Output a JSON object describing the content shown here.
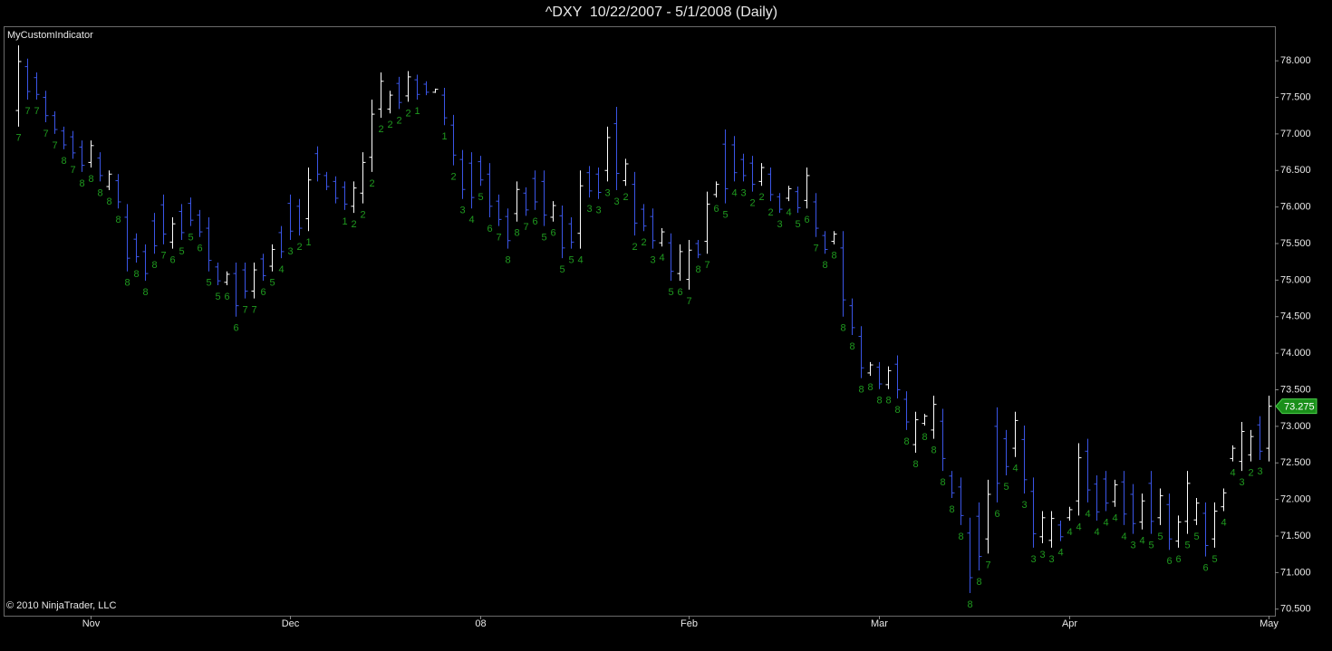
{
  "chart_data": {
    "type": "ohlc",
    "title": "^DXY  10/22/2007 - 5/1/2008 (Daily)",
    "indicator_label": "MyCustomIndicator",
    "copyright": "© 2010 NinjaTrader, LLC",
    "up_color": "#ffffff",
    "down_color": "#3a55e6",
    "label_color": "#1f9a1f",
    "last_price_color": "#1a8f1a",
    "categories": [
      null,
      null,
      null,
      null,
      null,
      null,
      null,
      null,
      "Nov",
      null,
      null,
      null,
      null,
      null,
      null,
      null,
      null,
      null,
      null,
      null,
      null,
      null,
      null,
      null,
      null,
      null,
      null,
      null,
      null,
      null,
      "Dec",
      null,
      null,
      null,
      null,
      null,
      null,
      null,
      null,
      null,
      null,
      null,
      null,
      null,
      null,
      null,
      null,
      null,
      null,
      null,
      null,
      "08",
      null,
      null,
      null,
      null,
      null,
      null,
      null,
      null,
      null,
      null,
      null,
      null,
      null,
      null,
      null,
      null,
      null,
      null,
      null,
      null,
      null,
      null,
      "Feb",
      null,
      null,
      null,
      null,
      null,
      null,
      null,
      null,
      null,
      null,
      null,
      null,
      null,
      null,
      null,
      null,
      null,
      null,
      null,
      null,
      "Mar",
      null,
      null,
      null,
      null,
      null,
      null,
      null,
      null,
      null,
      null,
      null,
      null,
      null,
      null,
      null,
      null,
      null,
      null,
      null,
      null,
      "Apr",
      null,
      null,
      null,
      null,
      null,
      null,
      null,
      null,
      null,
      null,
      null,
      null,
      null,
      null,
      null,
      null,
      null,
      null,
      null,
      null,
      null,
      "May"
    ],
    "open": [
      77.32,
      77.92,
      77.77,
      77.5,
      77.25,
      77.04,
      76.96,
      76.82,
      76.61,
      76.67,
      76.28,
      76.36,
      75.86,
      75.56,
      75.39,
      75.81,
      76.03,
      75.52,
      75.94,
      76.05,
      75.89,
      75.71,
      75.18,
      74.97,
      75.09,
      75.14,
      74.85,
      75.29,
      75.19,
      75.65,
      76.05,
      76.01,
      75.84,
      76.73,
      76.43,
      76.35,
      76.27,
      76.01,
      76.19,
      76.68,
      77.34,
      77.34,
      77.69,
      77.52,
      77.74,
      77.68,
      77.57,
      77.53,
      77.12,
      76.65,
      76.6,
      76.62,
      76.45,
      76.08,
      75.87,
      75.91,
      76.19,
      76.39,
      76.35,
      75.86,
      75.88,
      75.77,
      75.64,
      76.47,
      76.45,
      76.5,
      77.14,
      76.36,
      76.31,
      75.97,
      75.87,
      75.51,
      75.51,
      75.09,
      75.01,
      75.5,
      75.53,
      76.17,
      76.86,
      76.85,
      76.65,
      76.6,
      76.35,
      76.45,
      76.14,
      76.12,
      76.21,
      76.09,
      76.07,
      75.61,
      75.53,
      75.44,
      74.65,
      74.23,
      73.73,
      73.81,
      73.57,
      73.85,
      73.37,
      72.75,
      73.04,
      72.95,
      73.07,
      72.32,
      72.17,
      71.54,
      71.77,
      71.46,
      73.0,
      72.83,
      72.7,
      72.82,
      72.11,
      71.49,
      71.44,
      71.65,
      71.75,
      71.98,
      72.66,
      72.21,
      72.28,
      71.97,
      72.24,
      72.07,
      71.69,
      72.22,
      71.75,
      71.93,
      71.43,
      71.7,
      71.72,
      71.81,
      71.46,
      71.9,
      72.56,
      72.52,
      72.61,
      73.02,
      72.7
    ],
    "high": [
      78.21,
      78.03,
      77.84,
      77.59,
      77.31,
      77.1,
      77.04,
      76.91,
      76.91,
      76.75,
      76.5,
      76.45,
      76.04,
      75.64,
      75.49,
      75.92,
      76.17,
      75.86,
      76.04,
      76.13,
      75.96,
      75.86,
      75.24,
      75.12,
      75.24,
      75.24,
      75.24,
      75.36,
      75.49,
      75.74,
      76.17,
      76.11,
      76.54,
      76.83,
      76.48,
      76.42,
      76.35,
      76.35,
      76.75,
      77.47,
      77.84,
      77.59,
      77.78,
      77.86,
      77.81,
      77.72,
      77.62,
      77.63,
      77.26,
      76.78,
      76.75,
      76.7,
      76.6,
      76.17,
      75.98,
      76.35,
      76.27,
      76.5,
      76.5,
      76.08,
      76.02,
      75.86,
      76.5,
      76.56,
      76.54,
      77.1,
      77.37,
      76.66,
      76.48,
      76.04,
      75.98,
      75.71,
      75.64,
      75.49,
      75.55,
      75.55,
      76.21,
      76.35,
      77.06,
      76.97,
      76.73,
      76.7,
      76.6,
      76.54,
      76.19,
      76.29,
      76.28,
      76.54,
      76.19,
      75.67,
      75.67,
      75.67,
      74.75,
      74.37,
      73.88,
      73.88,
      73.82,
      73.97,
      73.48,
      73.2,
      73.17,
      73.42,
      73.24,
      72.39,
      72.3,
      71.75,
      71.96,
      72.27,
      73.26,
      72.95,
      73.2,
      73.01,
      72.3,
      71.84,
      71.84,
      71.71,
      71.9,
      72.77,
      72.83,
      72.33,
      72.39,
      72.27,
      72.39,
      72.21,
      72.08,
      72.39,
      72.15,
      72.08,
      71.78,
      72.39,
      72.02,
      71.96,
      71.96,
      72.15,
      72.74,
      73.06,
      72.95,
      73.14,
      73.42
    ],
    "low": [
      77.1,
      77.47,
      77.47,
      77.16,
      77.0,
      76.79,
      76.66,
      76.48,
      76.54,
      76.35,
      76.23,
      75.98,
      75.12,
      75.24,
      74.99,
      75.36,
      75.49,
      75.43,
      75.55,
      75.74,
      75.59,
      75.12,
      74.93,
      74.93,
      74.5,
      74.75,
      74.75,
      74.99,
      75.12,
      75.3,
      75.55,
      75.61,
      75.67,
      76.35,
      76.23,
      76.05,
      75.96,
      75.92,
      76.05,
      76.48,
      77.22,
      77.28,
      77.34,
      77.44,
      77.47,
      77.53,
      77.56,
      77.12,
      76.57,
      76.11,
      75.98,
      76.29,
      75.86,
      75.74,
      75.43,
      75.8,
      75.88,
      75.96,
      75.74,
      75.8,
      75.3,
      75.43,
      75.43,
      76.13,
      76.11,
      76.35,
      76.23,
      76.29,
      75.61,
      75.67,
      75.43,
      75.46,
      74.99,
      74.99,
      74.87,
      75.3,
      75.36,
      76.13,
      76.05,
      76.35,
      76.35,
      76.21,
      76.29,
      76.08,
      75.92,
      76.08,
      75.92,
      75.98,
      75.59,
      75.36,
      75.49,
      74.5,
      74.25,
      73.66,
      73.69,
      73.51,
      73.51,
      73.38,
      72.95,
      72.64,
      73.01,
      72.83,
      72.39,
      72.02,
      71.65,
      70.72,
      71.03,
      71.26,
      71.96,
      72.33,
      72.58,
      72.08,
      71.34,
      71.4,
      71.34,
      71.43,
      71.71,
      71.78,
      71.96,
      71.71,
      71.84,
      71.9,
      71.65,
      71.53,
      71.59,
      71.53,
      71.65,
      71.31,
      71.34,
      71.53,
      71.65,
      71.22,
      71.34,
      71.84,
      72.52,
      72.39,
      72.52,
      72.54,
      72.52
    ],
    "close": [
      77.99,
      77.58,
      77.54,
      77.25,
      77.06,
      76.85,
      76.74,
      76.57,
      76.84,
      76.43,
      76.45,
      76.07,
      75.3,
      75.32,
      75.09,
      75.47,
      75.63,
      75.77,
      75.65,
      75.82,
      75.66,
      75.27,
      74.99,
      75.08,
      74.65,
      74.85,
      75.14,
      75.06,
      75.42,
      75.39,
      75.67,
      75.71,
      76.37,
      76.45,
      76.28,
      76.12,
      76.04,
      76.26,
      76.61,
      77.27,
      77.72,
      77.53,
      77.43,
      77.78,
      77.54,
      77.57,
      77.61,
      77.22,
      76.71,
      76.24,
      76.13,
      76.37,
      76.01,
      75.83,
      75.54,
      76.24,
      75.96,
      76.07,
      75.89,
      76.02,
      75.44,
      75.52,
      76.29,
      76.22,
      76.2,
      76.95,
      76.46,
      76.59,
      75.78,
      75.74,
      75.54,
      75.66,
      75.12,
      75.39,
      75.41,
      75.35,
      76.04,
      76.31,
      76.25,
      76.47,
      76.43,
      76.31,
      76.54,
      76.17,
      75.97,
      76.25,
      75.99,
      76.43,
      75.71,
      75.42,
      75.63,
      74.73,
      74.35,
      73.8,
      73.84,
      73.58,
      73.76,
      73.5,
      73.06,
      73.09,
      73.14,
      73.3,
      72.56,
      72.09,
      71.78,
      70.93,
      71.22,
      72.07,
      72.22,
      72.45,
      73.08,
      72.27,
      71.53,
      71.75,
      71.74,
      71.49,
      71.86,
      72.57,
      72.13,
      71.83,
      71.95,
      72.2,
      71.8,
      71.67,
      71.98,
      71.7,
      72.05,
      71.46,
      71.69,
      72.22,
      71.95,
      71.37,
      71.84,
      72.09,
      72.7,
      72.93,
      72.86,
      72.66,
      73.275
    ],
    "bar_labels": [
      7,
      7,
      7,
      7,
      7,
      8,
      7,
      8,
      8,
      8,
      8,
      8,
      8,
      8,
      8,
      8,
      7,
      6,
      5,
      5,
      6,
      5,
      5,
      6,
      6,
      7,
      7,
      6,
      5,
      4,
      3,
      2,
      1,
      null,
      null,
      null,
      1,
      2,
      2,
      2,
      2,
      2,
      2,
      2,
      1,
      null,
      null,
      1,
      2,
      3,
      4,
      5,
      6,
      7,
      8,
      8,
      7,
      6,
      5,
      6,
      5,
      5,
      4,
      3,
      3,
      3,
      3,
      2,
      2,
      2,
      3,
      4,
      5,
      6,
      7,
      8,
      7,
      6,
      5,
      4,
      3,
      2,
      2,
      2,
      3,
      4,
      5,
      6,
      7,
      8,
      8,
      8,
      8,
      8,
      8,
      8,
      8,
      8,
      8,
      8,
      8,
      8,
      8,
      8,
      8,
      8,
      8,
      7,
      6,
      5,
      4,
      3,
      3,
      3,
      3,
      4,
      4,
      4,
      4,
      4,
      4,
      4,
      4,
      3,
      4,
      5,
      5,
      6,
      6,
      5,
      5,
      6,
      5,
      4,
      4,
      3,
      2,
      3,
      null
    ],
    "ylim": [
      70.41,
      78.46
    ],
    "yticks": [
      {
        "value": 70.5,
        "label": "70.500"
      },
      {
        "value": 71,
        "label": "71.000"
      },
      {
        "value": 71.5,
        "label": "71.500"
      },
      {
        "value": 72,
        "label": "72.000"
      },
      {
        "value": 72.5,
        "label": "72.500"
      },
      {
        "value": 73,
        "label": "73.000"
      },
      {
        "value": 73.5,
        "label": "73.500"
      },
      {
        "value": 74,
        "label": "74.000"
      },
      {
        "value": 74.5,
        "label": "74.500"
      },
      {
        "value": 75,
        "label": "75.000"
      },
      {
        "value": 75.5,
        "label": "75.500"
      },
      {
        "value": 76,
        "label": "76.000"
      },
      {
        "value": 76.5,
        "label": "76.500"
      },
      {
        "value": 77,
        "label": "77.000"
      },
      {
        "value": 77.5,
        "label": "77.500"
      },
      {
        "value": 78,
        "label": "78.000"
      }
    ],
    "grid": false
  }
}
